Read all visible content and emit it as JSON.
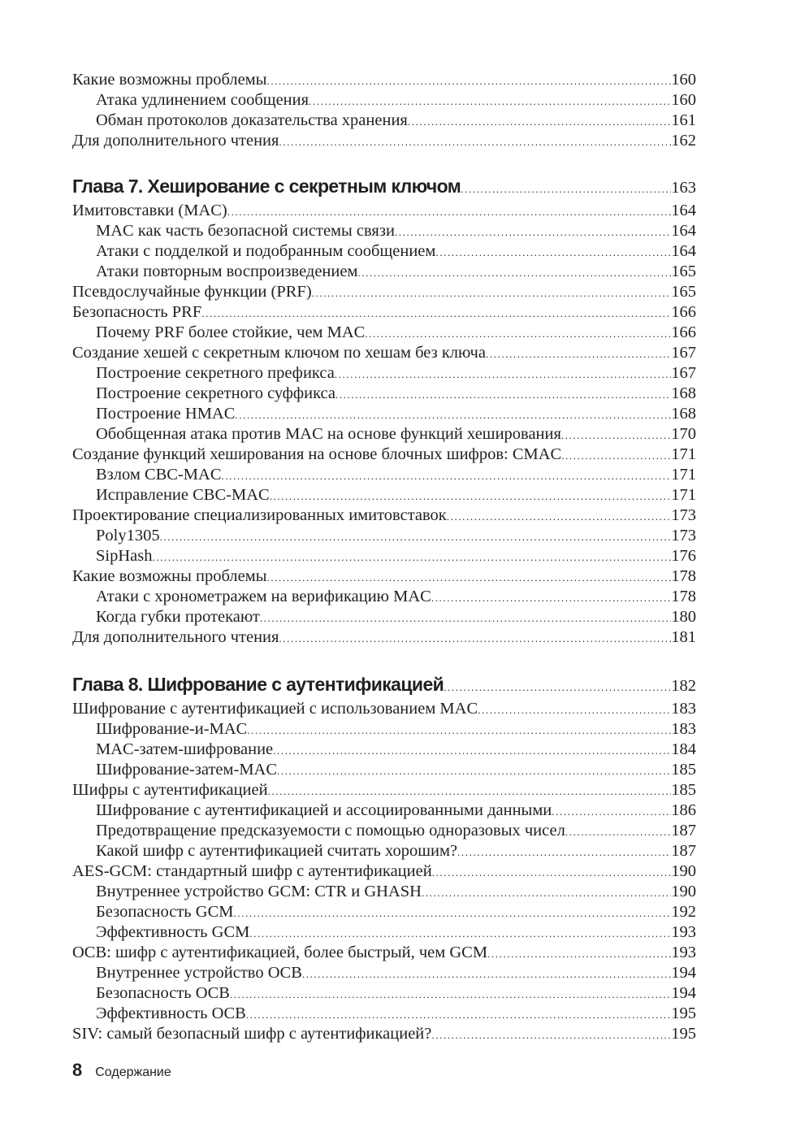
{
  "sections": [
    {
      "entries": [
        {
          "title": "Какие возможны проблемы",
          "page": "160",
          "level": 1
        },
        {
          "title": "Атака удлинением сообщения",
          "page": "160",
          "level": 2
        },
        {
          "title": "Обман протоколов доказательства хранения",
          "page": "161",
          "level": 2
        },
        {
          "title": "Для дополнительного чтения",
          "page": "162",
          "level": 1
        }
      ]
    },
    {
      "chapter": {
        "title": "Глава 7. Хеширование с секретным ключом",
        "page": "163"
      },
      "entries": [
        {
          "title": "Имитовставки (MAC)",
          "page": "164",
          "level": 1
        },
        {
          "title": "MAC как часть безопасной системы связи",
          "page": "164",
          "level": 2
        },
        {
          "title": "Атаки с подделкой и подобранным сообщением",
          "page": "164",
          "level": 2
        },
        {
          "title": "Атаки повторным воспроизведением",
          "page": "165",
          "level": 2
        },
        {
          "title": "Псевдослучайные функции (PRF)",
          "page": "165",
          "level": 1
        },
        {
          "title": "Безопасность PRF",
          "page": "166",
          "level": 1
        },
        {
          "title": "Почему PRF более стойкие, чем MAC",
          "page": "166",
          "level": 2
        },
        {
          "title": "Создание хешей с секретным ключом по хешам без ключа",
          "page": "167",
          "level": 1
        },
        {
          "title": "Построение секретного префикса",
          "page": "167",
          "level": 2
        },
        {
          "title": "Построение секретного суффикса",
          "page": "168",
          "level": 2
        },
        {
          "title": "Построение HMAC",
          "page": "168",
          "level": 2
        },
        {
          "title": "Обобщенная атака против MAC на основе функций хеширования",
          "page": "170",
          "level": 2
        },
        {
          "title": "Создание функций хеширования на основе блочных шифров: CMAC",
          "page": "171",
          "level": 1
        },
        {
          "title": "Взлом CBC-MAC",
          "page": "171",
          "level": 2
        },
        {
          "title": "Исправление CBC-MAC",
          "page": "171",
          "level": 2
        },
        {
          "title": "Проектирование специализированных имитовставок",
          "page": "173",
          "level": 1
        },
        {
          "title": "Poly1305",
          "page": "173",
          "level": 2
        },
        {
          "title": "SipHash",
          "page": "176",
          "level": 2
        },
        {
          "title": "Какие возможны проблемы",
          "page": "178",
          "level": 1
        },
        {
          "title": "Атаки с хронометражем на верификацию MAC",
          "page": "178",
          "level": 2
        },
        {
          "title": "Когда губки протекают",
          "page": "180",
          "level": 2
        },
        {
          "title": "Для дополнительного чтения",
          "page": "181",
          "level": 1
        }
      ]
    },
    {
      "chapter": {
        "title": "Глава 8. Шифрование с аутентификацией",
        "page": "182"
      },
      "entries": [
        {
          "title": "Шифрование с аутентификацией с использованием MAC",
          "page": "183",
          "level": 1
        },
        {
          "title": "Шифрование-и-MAC",
          "page": "183",
          "level": 2
        },
        {
          "title": "MAC-затем-шифрование",
          "page": "184",
          "level": 2
        },
        {
          "title": "Шифрование-затем-MAC",
          "page": "185",
          "level": 2
        },
        {
          "title": "Шифры с аутентификацией",
          "page": "185",
          "level": 1
        },
        {
          "title": "Шифрование с аутентификацией и ассоциированными данными",
          "page": "186",
          "level": 2
        },
        {
          "title": "Предотвращение предсказуемости с помощью одноразовых чисел",
          "page": "187",
          "level": 2
        },
        {
          "title": "Какой шифр с аутентификацией считать хорошим?",
          "page": "187",
          "level": 2
        },
        {
          "title": "AES-GCM: стандартный шифр с аутентификацией",
          "page": "190",
          "level": 1
        },
        {
          "title": "Внутреннее устройство GCM: CTR и GHASH",
          "page": "190",
          "level": 2
        },
        {
          "title": "Безопасность GCM",
          "page": "192",
          "level": 2
        },
        {
          "title": "Эффективность GCM",
          "page": "193",
          "level": 2
        },
        {
          "title": "OCB: шифр с аутентификацией, более быстрый, чем GCM",
          "page": "193",
          "level": 1
        },
        {
          "title": "Внутреннее устройство OCB",
          "page": "194",
          "level": 2
        },
        {
          "title": "Безопасность OCB",
          "page": "194",
          "level": 2
        },
        {
          "title": "Эффективность OCB",
          "page": "195",
          "level": 2
        },
        {
          "title": "SIV: самый безопасный шифр с аутентификацией?",
          "page": "195",
          "level": 1
        }
      ]
    }
  ],
  "footer": {
    "page_number": "8",
    "running_title": "Содержание"
  }
}
